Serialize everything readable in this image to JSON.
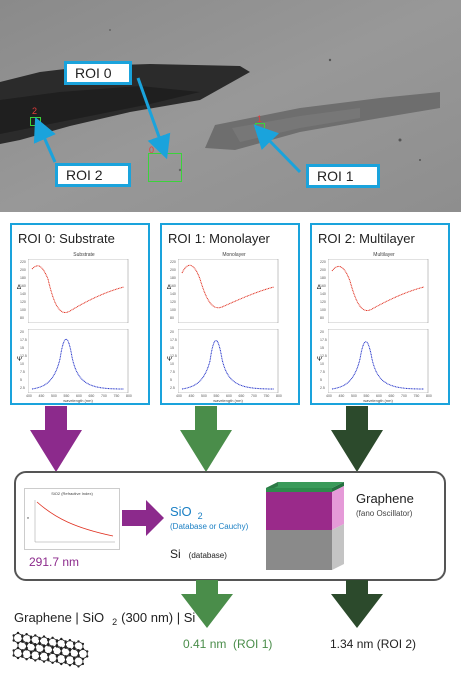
{
  "rois": {
    "roi0": "ROI 0",
    "roi1": "ROI 1",
    "roi2": "ROI 2",
    "marker0": "0",
    "marker1": "1",
    "marker2": "2"
  },
  "panels": [
    {
      "title": "ROI 0: Substrate",
      "plot_caption": "Substrate",
      "x_label": "wavelength (nm)"
    },
    {
      "title": "ROI 1: Monolayer",
      "plot_caption": "Monolayer",
      "x_label": "wavelength (nm)"
    },
    {
      "title": "ROI 2: Multilayer",
      "plot_caption": "Multilayer",
      "x_label": "wavelength (nm)"
    }
  ],
  "axis": {
    "delta_symbol": "Δ",
    "psi_symbol": "Ψ",
    "delta_ticks": [
      "220",
      "200",
      "180",
      "160",
      "140",
      "120",
      "100",
      "80"
    ],
    "psi_ticks": [
      "20",
      "17.5",
      "15",
      "12.5",
      "10",
      "7.5",
      "5",
      "2.5"
    ],
    "x_ticks": [
      "400",
      "450",
      "500",
      "550",
      "600",
      "650",
      "700",
      "750",
      "800"
    ]
  },
  "model": {
    "inset_title": "SiO2 (Refractive Index)",
    "inset_ylabel": "n",
    "thickness_value": "291.7 nm",
    "sio2_main": "SiO",
    "sio2_sub": "2",
    "sio2_note": "(Database or Cauchy)",
    "si_main": "Si",
    "si_note": "(database)",
    "graphene_title": "Graphene",
    "graphene_note": "(fano Oscillator)"
  },
  "result": {
    "stack_part1": "Graphene | SiO",
    "stack_sub": "2",
    "stack_part2": "(300 nm) | Si",
    "roi1_value": "0.41 nm",
    "roi1_tag": "(ROI 1)",
    "roi2_value": "1.34 nm",
    "roi2_tag": "(ROI 2)"
  },
  "colors": {
    "accent_blue": "#1aa3dc",
    "roi_green": "#3bd23b",
    "arrow_purple": "#8c2a8c",
    "arrow_green": "#4a8d4a",
    "arrow_dark": "#2c4a2c",
    "delta_red": "#e03020",
    "psi_blue": "#2030c8"
  }
}
